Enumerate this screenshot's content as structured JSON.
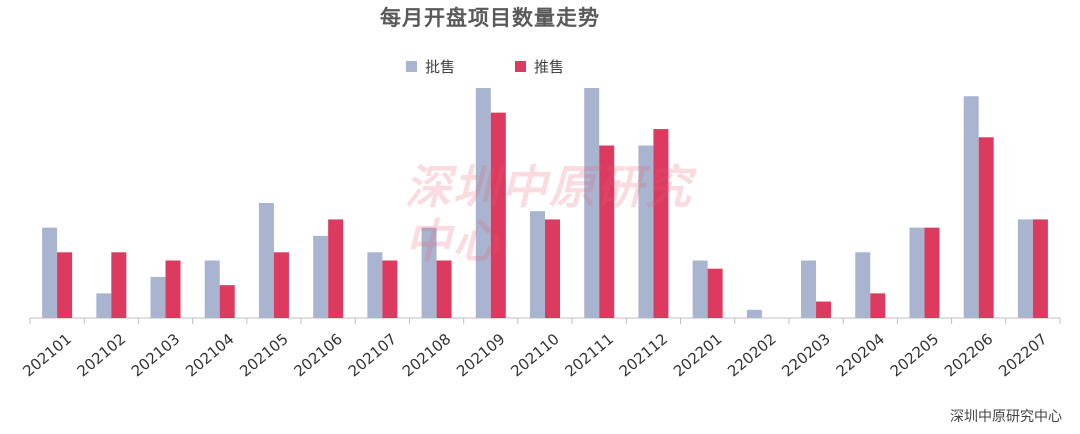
{
  "colors": {
    "approved": "#a9b4d0",
    "promoted": "#dc3a5e",
    "axis": "#bfbfbf"
  },
  "watermark": "深圳中原研究中心",
  "source_note": "深圳中原研究中心",
  "chart_data": {
    "type": "bar",
    "title": "每月开盘项目数量走势",
    "categories": [
      "202101",
      "202102",
      "202103",
      "202104",
      "202105",
      "202106",
      "202107",
      "202108",
      "202109",
      "202110",
      "202111",
      "202112",
      "202201",
      "220202",
      "220203",
      "220204",
      "202205",
      "202206",
      "202207"
    ],
    "series": [
      {
        "name": "批售",
        "values": [
          11,
          3,
          5,
          7,
          14,
          10,
          8,
          11,
          28,
          13,
          28,
          21,
          7,
          1,
          7,
          8,
          11,
          27,
          12
        ]
      },
      {
        "name": "推售",
        "values": [
          8,
          8,
          7,
          4,
          8,
          12,
          7,
          7,
          25,
          12,
          21,
          23,
          6,
          0,
          2,
          3,
          11,
          22,
          12
        ]
      }
    ],
    "ylim": [
      0,
      28
    ],
    "grid": false,
    "legend": "top-center",
    "xlabel": "",
    "ylabel": ""
  }
}
